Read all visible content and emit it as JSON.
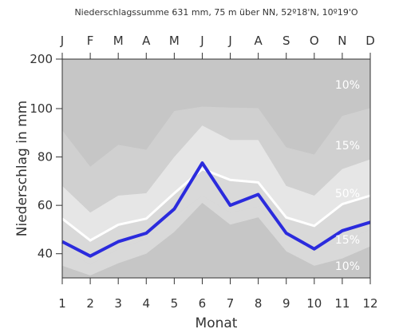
{
  "chart_data": {
    "type": "area",
    "title": "Niederschlagssumme 631 mm, 75 m über NN, 52º18'N, 10º19'O",
    "xlabel": "Monat",
    "ylabel": "Niederschlag in mm",
    "x": [
      1,
      2,
      3,
      4,
      5,
      6,
      7,
      8,
      9,
      10,
      11,
      12
    ],
    "month_labels": [
      "J",
      "F",
      "M",
      "A",
      "M",
      "J",
      "J",
      "A",
      "S",
      "O",
      "N",
      "D"
    ],
    "y_ticks": [
      40,
      60,
      80,
      100,
      200
    ],
    "y_scale": "piecewise-linear with axis break between 100 and 200",
    "ylim": [
      30,
      200
    ],
    "xlim": [
      1,
      12
    ],
    "series": [
      {
        "name": "Niederschlag",
        "values": [
          45,
          39,
          45,
          48.5,
          58.5,
          77.5,
          60,
          64.5,
          48.5,
          42,
          49.5,
          53
        ],
        "color": "#2b2bdd"
      }
    ],
    "percentile_bands": {
      "p10_upper": [
        91,
        76,
        85,
        83,
        99,
        104,
        102,
        101,
        84,
        81,
        97,
        101
      ],
      "p15_upper": [
        68,
        57,
        64,
        65,
        80,
        93,
        87,
        87,
        68,
        64,
        75,
        79
      ],
      "p50": [
        54.5,
        45.5,
        52,
        54.5,
        65,
        75,
        70.5,
        69.5,
        55,
        51.5,
        60.5,
        64
      ],
      "p15_lower": [
        42,
        35.5,
        42,
        46,
        55.5,
        64,
        57,
        59.5,
        46,
        41.5,
        45,
        50
      ],
      "p10_lower": [
        35,
        31,
        36,
        40,
        49,
        61,
        52,
        55,
        41,
        35,
        38,
        43
      ]
    },
    "band_labels": {
      "upper10": "10%",
      "upper15": "15%",
      "median": "50%",
      "lower15": "15%",
      "lower10": "10%"
    },
    "colors": {
      "outer": "#c6c6c6",
      "band15": "#d9d9d9",
      "central": "#e6e6e6",
      "median": "#ffffff",
      "inner_low": "#d9d9d9",
      "bottom": "#c6c6c6"
    }
  }
}
